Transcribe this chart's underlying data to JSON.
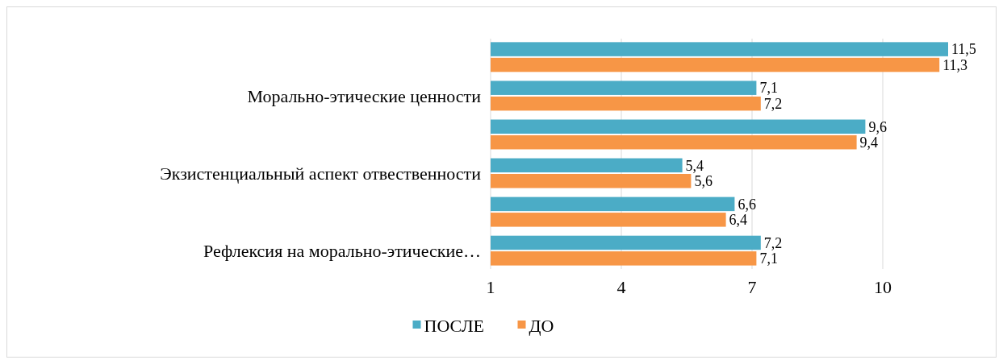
{
  "chart_data": {
    "type": "bar",
    "orientation": "horizontal",
    "categories": [
      null,
      "Морально-этические ценности",
      null,
      "Экзистенциальный аспект отвественности",
      null,
      "Рефлексия на морально-этические…"
    ],
    "series": [
      {
        "name": "ПОСЛЕ",
        "color": "#4bacc6",
        "values": [
          11.5,
          7.1,
          9.6,
          5.4,
          6.6,
          7.2
        ],
        "value_labels": [
          "11,5",
          "7,1",
          "9,6",
          "5,4",
          "6,6",
          "7,2"
        ]
      },
      {
        "name": "ДО",
        "color": "#f79646",
        "values": [
          11.3,
          7.2,
          9.4,
          5.6,
          6.4,
          7.1
        ],
        "value_labels": [
          "11,3",
          "7,2",
          "9,4",
          "5,6",
          "6,4",
          "7,1"
        ]
      }
    ],
    "xlim": [
      1,
      11.5
    ],
    "xticks": [
      1,
      4,
      7,
      10
    ],
    "grid": "x",
    "legend": "bottom"
  }
}
